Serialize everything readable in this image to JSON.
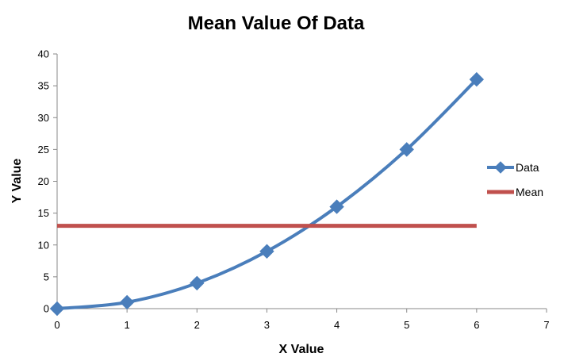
{
  "chart_data": {
    "type": "scatter",
    "title": "Mean Value Of Data",
    "xlabel": "X Value",
    "ylabel": "Y Value",
    "xlim": [
      0,
      7
    ],
    "ylim": [
      0,
      40
    ],
    "x_ticks": [
      0,
      1,
      2,
      3,
      4,
      5,
      6,
      7
    ],
    "y_ticks": [
      0,
      5,
      10,
      15,
      20,
      25,
      30,
      35,
      40
    ],
    "grid": false,
    "legend_position": "right",
    "series": [
      {
        "name": "Data",
        "style": "smooth-line-with-diamond-markers",
        "color": "#4a7ebb",
        "x": [
          0,
          1,
          2,
          3,
          4,
          5,
          6
        ],
        "y": [
          0,
          1,
          4,
          9,
          16,
          25,
          36
        ]
      },
      {
        "name": "Mean",
        "style": "line",
        "color": "#c0504d",
        "x": [
          0,
          6
        ],
        "y": [
          13,
          13
        ]
      }
    ]
  }
}
